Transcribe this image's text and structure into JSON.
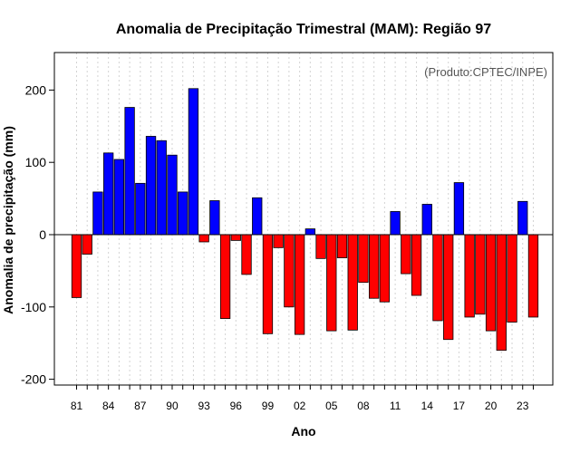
{
  "chart_data": {
    "type": "bar",
    "title": "Anomalia de Precipitação Trimestral (MAM): Região 97",
    "xlabel": "Ano",
    "ylabel": "Anomalia de precipitação (mm)",
    "annotation": "(Produto:CPTEC/INPE)",
    "ylim": [
      -210,
      250
    ],
    "yticks": [
      -200,
      -100,
      0,
      100,
      200
    ],
    "categories": [
      "1981",
      "1982",
      "1983",
      "1984",
      "1985",
      "1986",
      "1987",
      "1988",
      "1989",
      "1990",
      "1991",
      "1992",
      "1993",
      "1994",
      "1995",
      "1996",
      "1997",
      "1998",
      "1999",
      "2000",
      "2001",
      "2002",
      "2003",
      "2004",
      "2005",
      "2006",
      "2007",
      "2008",
      "2009",
      "2010",
      "2011",
      "2012",
      "2013",
      "2014",
      "2015",
      "2016",
      "2017",
      "2018",
      "2019",
      "2020",
      "2021",
      "2022",
      "2023",
      "2024"
    ],
    "x_tick_labels": [
      {
        "index": 0,
        "label": "81"
      },
      {
        "index": 3,
        "label": "84"
      },
      {
        "index": 6,
        "label": "87"
      },
      {
        "index": 9,
        "label": "90"
      },
      {
        "index": 12,
        "label": "93"
      },
      {
        "index": 15,
        "label": "96"
      },
      {
        "index": 18,
        "label": "99"
      },
      {
        "index": 21,
        "label": "02"
      },
      {
        "index": 24,
        "label": "05"
      },
      {
        "index": 27,
        "label": "08"
      },
      {
        "index": 30,
        "label": "11"
      },
      {
        "index": 33,
        "label": "14"
      },
      {
        "index": 36,
        "label": "17"
      },
      {
        "index": 39,
        "label": "20"
      },
      {
        "index": 42,
        "label": "23"
      }
    ],
    "values": [
      -87,
      -27,
      59,
      113,
      104,
      176,
      71,
      136,
      130,
      110,
      59,
      202,
      -10,
      47,
      -116,
      -8,
      -55,
      51,
      -137,
      -18,
      -100,
      -138,
      8,
      -33,
      -133,
      -32,
      -132,
      -66,
      -88,
      -93,
      32,
      -54,
      -84,
      42,
      -119,
      -145,
      72,
      -114,
      -110,
      -133,
      -160,
      -121,
      46,
      -114
    ],
    "colors": {
      "positive": "#0000ff",
      "negative": "#ff0000",
      "grid": "#d3d3d3",
      "frame": "#000000"
    },
    "grid": true
  }
}
